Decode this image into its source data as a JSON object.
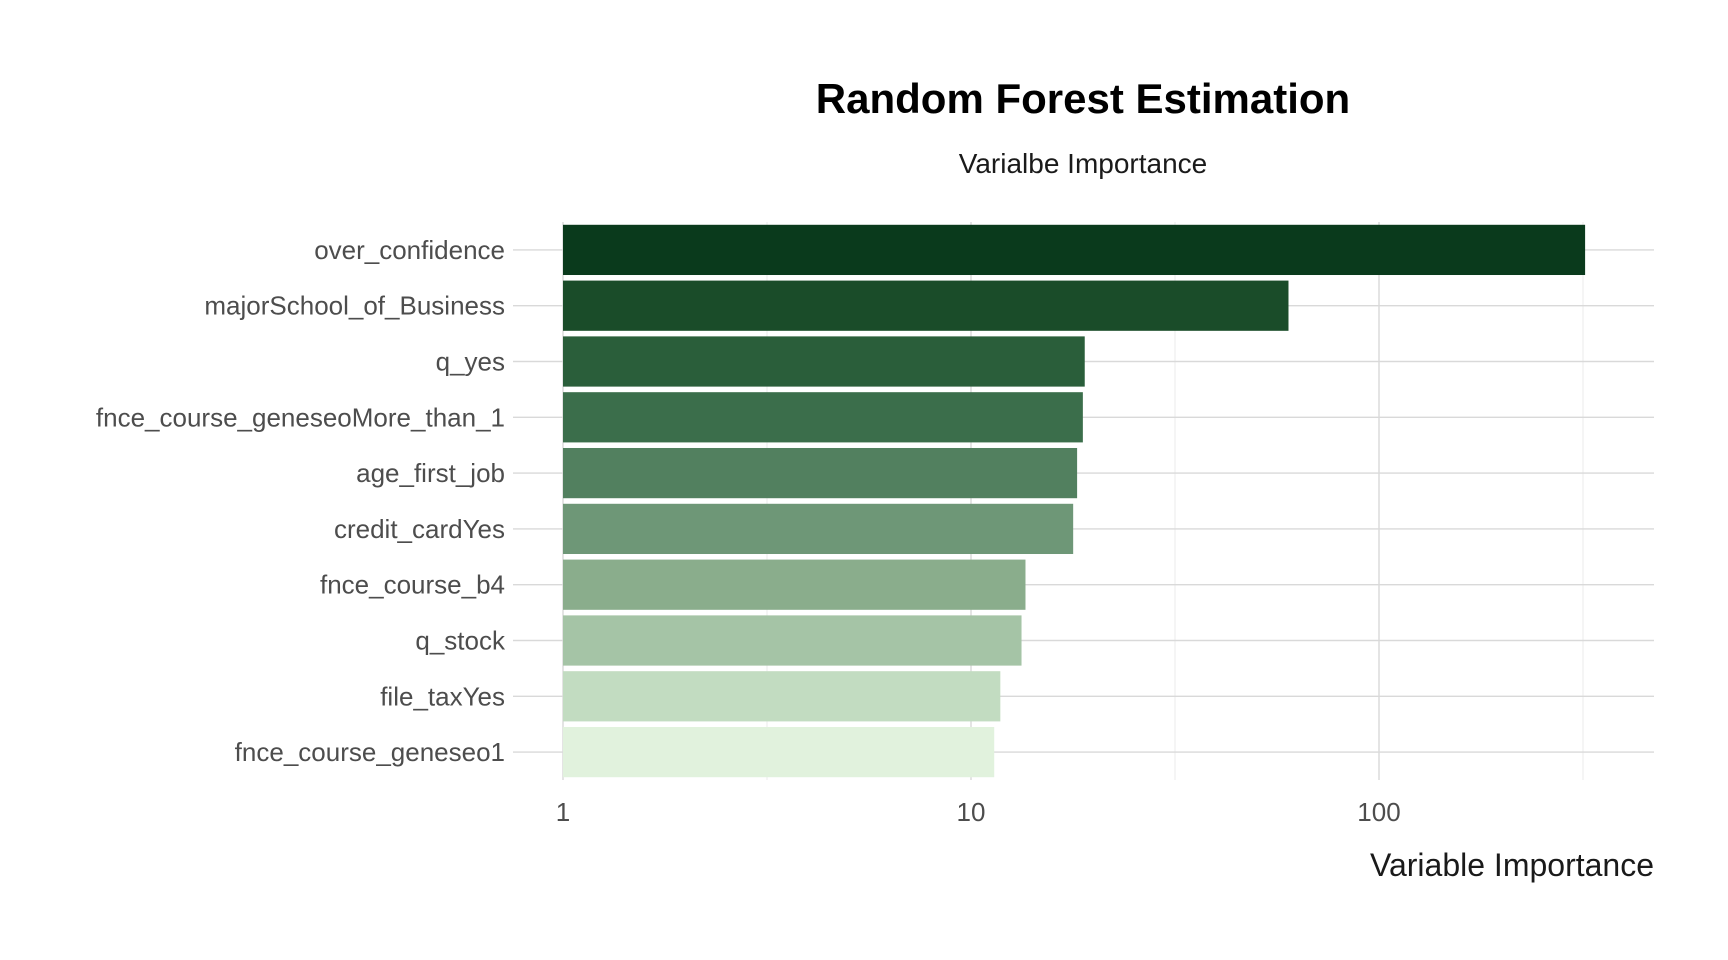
{
  "chart_data": {
    "type": "bar",
    "orientation": "horizontal",
    "title": "Random Forest Estimation",
    "subtitle": "Varialbe Importance",
    "xlabel": "Variable Importance",
    "ylabel": "",
    "x_scale": "log10",
    "xlim": [
      1,
      500
    ],
    "x_ticks": [
      1,
      10,
      100
    ],
    "x_tick_labels": [
      "1",
      "10",
      "100"
    ],
    "grid": true,
    "legend": "none",
    "categories": [
      "over_confidence",
      "majorSchool_of_Business",
      "q_yes",
      "fnce_course_geneseoMore_than_1",
      "age_first_job",
      "credit_cardYes",
      "fnce_course_b4",
      "q_stock",
      "file_taxYes",
      "fnce_course_geneseo1"
    ],
    "values": [
      320,
      60,
      19,
      18.8,
      18.2,
      17.8,
      13.6,
      13.3,
      11.8,
      11.4
    ],
    "colors": [
      "#0a3a1c",
      "#1a4c29",
      "#2a5e3a",
      "#3b6e4b",
      "#52805f",
      "#6e9777",
      "#8aad8c",
      "#a5c4a6",
      "#c2dcc1",
      "#e1f2dd"
    ]
  }
}
